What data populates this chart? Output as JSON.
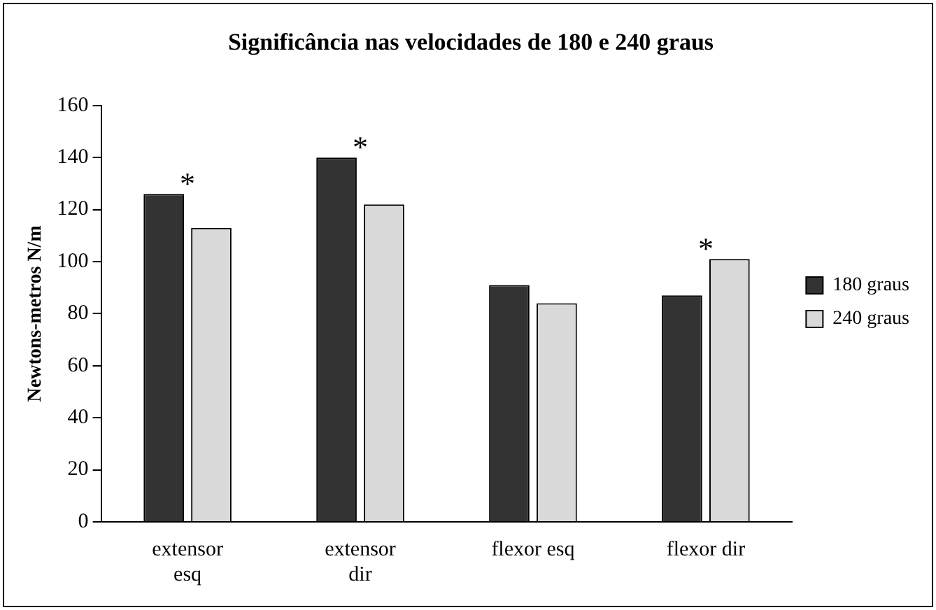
{
  "chart_data": {
    "type": "bar",
    "title": "Significância nas velocidades de 180 e 240 graus",
    "ylabel": "Newtons-metros N/m",
    "categories": [
      "extensor esq",
      "extensor dir",
      "flexor esq",
      "flexor dir"
    ],
    "series": [
      {
        "name": "180 graus",
        "color": "#333333",
        "values": [
          126,
          140,
          91,
          87
        ]
      },
      {
        "name": "240 graus",
        "color": "#d9d9d9",
        "values": [
          113,
          122,
          84,
          101
        ]
      }
    ],
    "ylim": [
      0,
      160
    ],
    "yticks": [
      0,
      20,
      40,
      60,
      80,
      100,
      120,
      140,
      160
    ],
    "grid": false,
    "legend": "right",
    "annotations": [
      "*",
      "*",
      "*"
    ]
  }
}
